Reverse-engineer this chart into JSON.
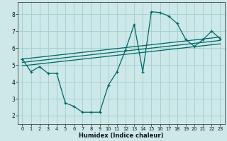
{
  "xlabel": "Humidex (Indice chaleur)",
  "bg_color": "#cce8e8",
  "line_color": "#006666",
  "grid_color": "#aad0d0",
  "xlim": [
    -0.5,
    23.5
  ],
  "ylim": [
    1.5,
    8.7
  ],
  "xticks": [
    0,
    1,
    2,
    3,
    4,
    5,
    6,
    7,
    8,
    9,
    10,
    11,
    12,
    13,
    14,
    15,
    16,
    17,
    18,
    19,
    20,
    21,
    22,
    23
  ],
  "yticks": [
    2,
    3,
    4,
    5,
    6,
    7,
    8
  ],
  "main_x": [
    0,
    1,
    2,
    3,
    4,
    5,
    6,
    7,
    8,
    9,
    10,
    11,
    12,
    13,
    14,
    15,
    16,
    17,
    18,
    19,
    20,
    21,
    22,
    23
  ],
  "main_y": [
    5.35,
    4.6,
    4.9,
    4.5,
    4.5,
    2.75,
    2.55,
    2.2,
    2.2,
    2.2,
    3.8,
    4.6,
    5.9,
    7.4,
    4.6,
    8.15,
    8.1,
    7.9,
    7.45,
    6.5,
    6.1,
    6.5,
    7.0,
    6.55
  ],
  "reg_lines": [
    [
      5.35,
      6.65
    ],
    [
      5.15,
      6.45
    ],
    [
      4.95,
      6.25
    ]
  ]
}
